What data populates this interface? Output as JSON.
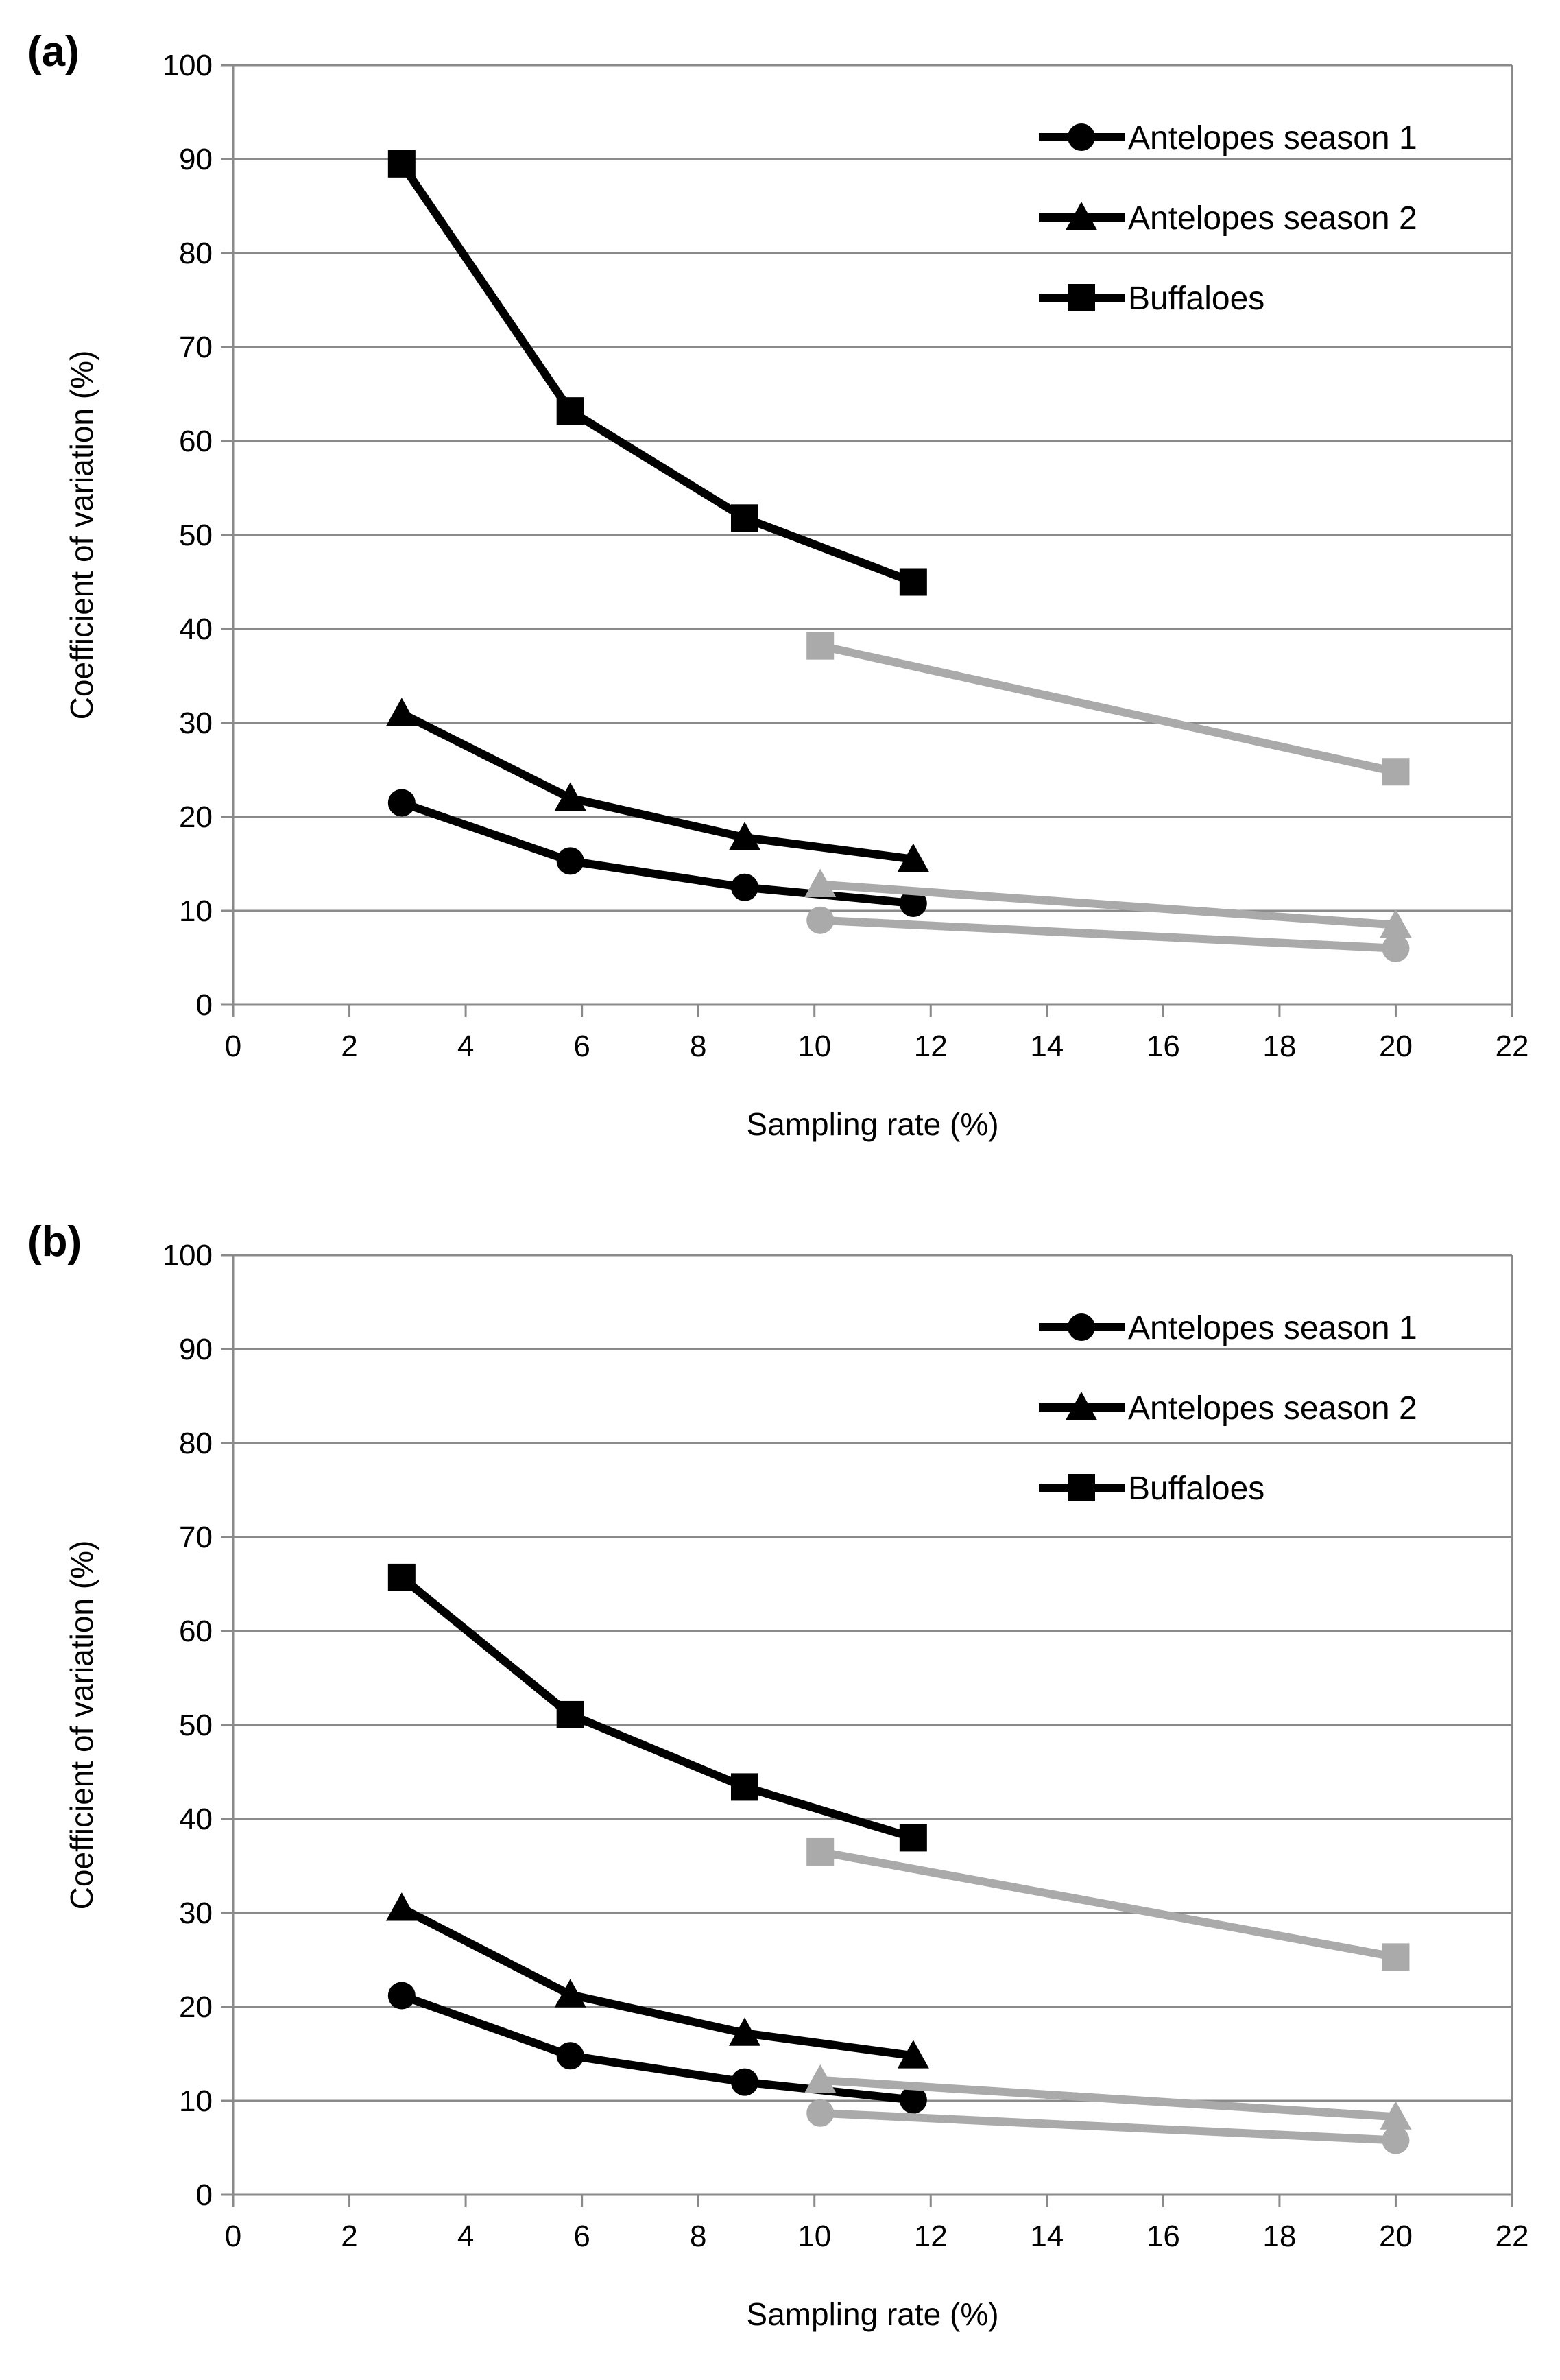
{
  "chart_data": [
    {
      "panel_label": "(a)",
      "type": "line",
      "xlabel": "Sampling rate (%)",
      "ylabel": "Coefficient of variation (%)",
      "xlim": [
        0,
        22
      ],
      "ylim": [
        0,
        100
      ],
      "xticks": [
        "0",
        "2",
        "4",
        "6",
        "8",
        "10",
        "12",
        "14",
        "16",
        "18",
        "20",
        "22"
      ],
      "yticks": [
        "0",
        "10",
        "20",
        "30",
        "40",
        "50",
        "60",
        "70",
        "80",
        "90",
        "100"
      ],
      "grid": "horizontal",
      "legend_position": "top-right",
      "legend": [
        "Antelopes season 1",
        "Antelopes season 2",
        "Buffaloes"
      ],
      "series": [
        {
          "name": "Antelopes season 1",
          "marker": "circle",
          "color": "#000000",
          "x": [
            2.9,
            5.8,
            8.8,
            11.7
          ],
          "y": [
            21.5,
            15.3,
            12.5,
            10.8
          ]
        },
        {
          "name": "Antelopes season 2",
          "marker": "triangle",
          "color": "#000000",
          "x": [
            2.9,
            5.8,
            8.8,
            11.7
          ],
          "y": [
            31,
            22,
            17.8,
            15.5
          ]
        },
        {
          "name": "Buffaloes",
          "marker": "square",
          "color": "#000000",
          "x": [
            2.9,
            5.8,
            8.8,
            11.7
          ],
          "y": [
            89.5,
            63.2,
            51.8,
            45
          ]
        },
        {
          "name": "",
          "marker": "circle",
          "color": "#aaaaaa",
          "x": [
            10.1,
            20
          ],
          "y": [
            9,
            6
          ]
        },
        {
          "name": "",
          "marker": "triangle",
          "color": "#aaaaaa",
          "x": [
            10.1,
            20
          ],
          "y": [
            12.8,
            8.5
          ]
        },
        {
          "name": "",
          "marker": "square",
          "color": "#aaaaaa",
          "x": [
            10.1,
            20
          ],
          "y": [
            38.2,
            24.8
          ]
        }
      ]
    },
    {
      "panel_label": "(b)",
      "type": "line",
      "xlabel": "Sampling rate (%)",
      "ylabel": "Coefficient of variation (%)",
      "xlim": [
        0,
        22
      ],
      "ylim": [
        0,
        100
      ],
      "xticks": [
        "0",
        "2",
        "4",
        "6",
        "8",
        "10",
        "12",
        "14",
        "16",
        "18",
        "20",
        "22"
      ],
      "yticks": [
        "0",
        "10",
        "20",
        "30",
        "40",
        "50",
        "60",
        "70",
        "80",
        "90",
        "100"
      ],
      "grid": "horizontal",
      "legend_position": "top-right",
      "legend": [
        "Antelopes season 1",
        "Antelopes season 2",
        "Buffaloes"
      ],
      "series": [
        {
          "name": "Antelopes season 1",
          "marker": "circle",
          "color": "#000000",
          "x": [
            2.9,
            5.8,
            8.8,
            11.7
          ],
          "y": [
            21.2,
            14.8,
            12,
            10.1
          ]
        },
        {
          "name": "Antelopes season 2",
          "marker": "triangle",
          "color": "#000000",
          "x": [
            2.9,
            5.8,
            8.8,
            11.7
          ],
          "y": [
            30.5,
            21.3,
            17.2,
            14.8
          ]
        },
        {
          "name": "Buffaloes",
          "marker": "square",
          "color": "#000000",
          "x": [
            2.9,
            5.8,
            8.8,
            11.7
          ],
          "y": [
            65.7,
            51.1,
            43.4,
            38
          ]
        },
        {
          "name": "",
          "marker": "circle",
          "color": "#aaaaaa",
          "x": [
            10.1,
            20
          ],
          "y": [
            8.7,
            5.8
          ]
        },
        {
          "name": "",
          "marker": "triangle",
          "color": "#aaaaaa",
          "x": [
            10.1,
            20
          ],
          "y": [
            12.2,
            8.3
          ]
        },
        {
          "name": "",
          "marker": "square",
          "color": "#aaaaaa",
          "x": [
            10.1,
            20
          ],
          "y": [
            36.5,
            25.3
          ]
        }
      ]
    }
  ]
}
